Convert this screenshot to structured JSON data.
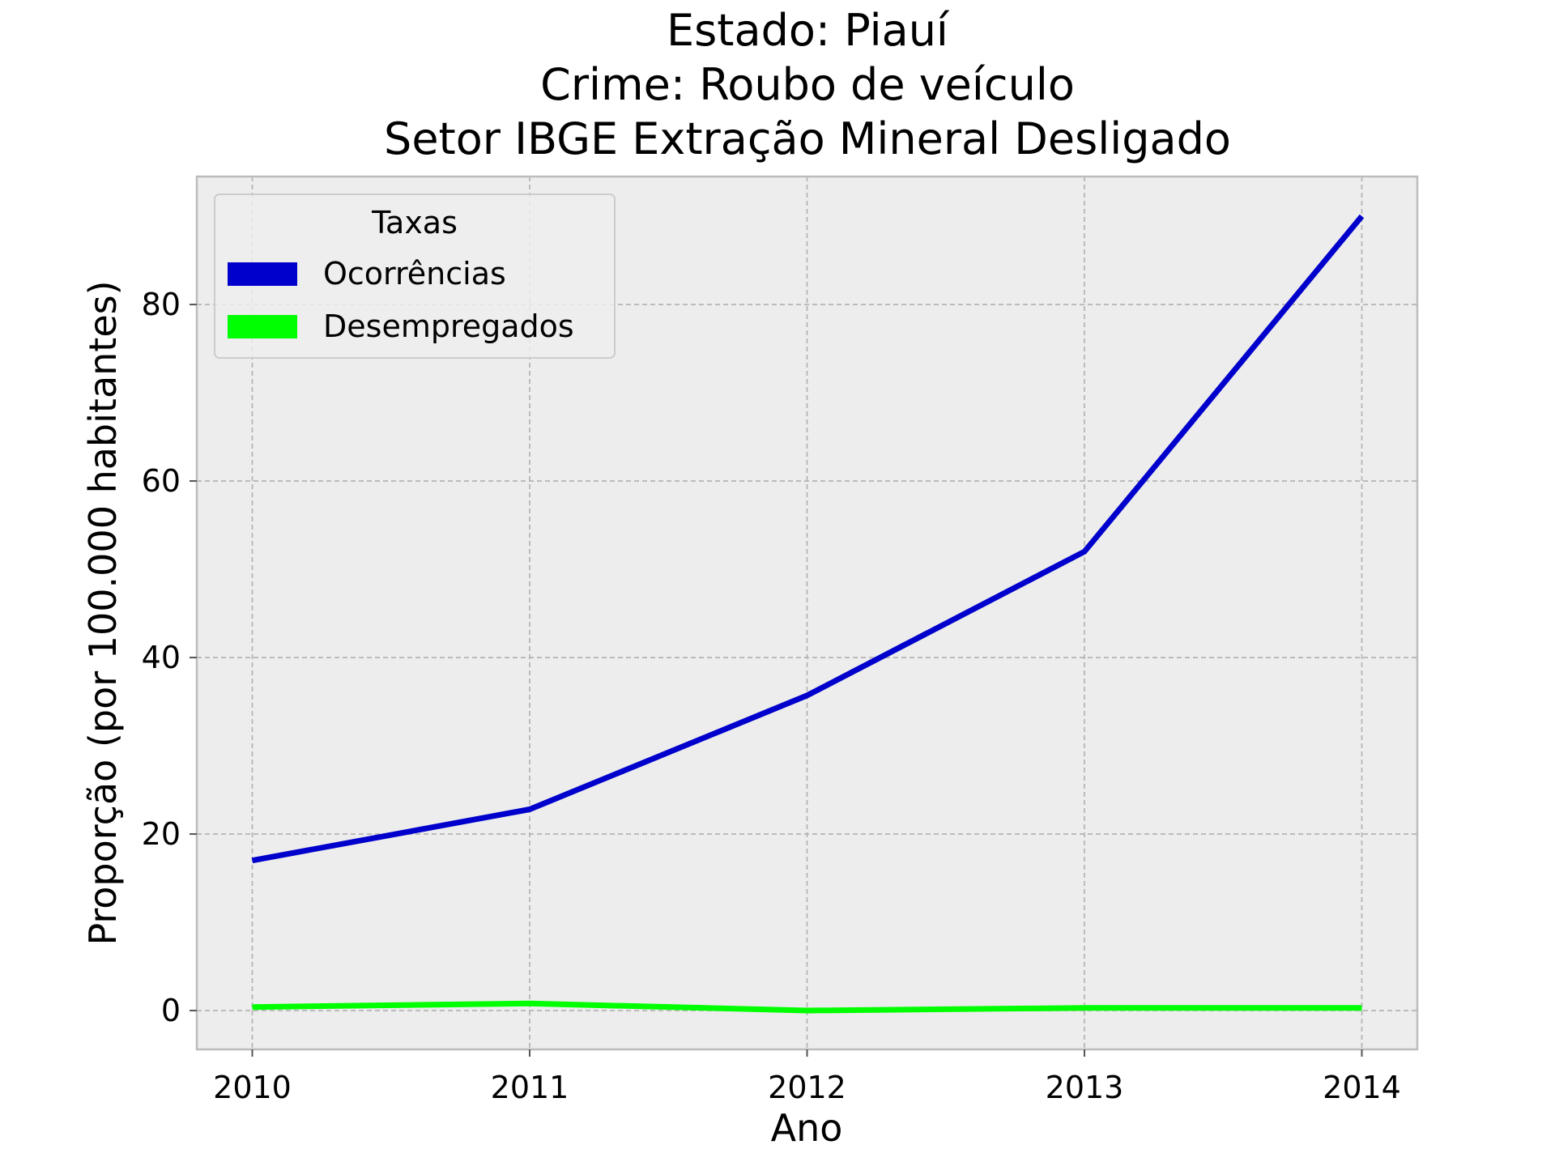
{
  "chart_data": {
    "type": "line",
    "title": [
      "Estado: Piauí",
      "Crime: Roubo de veículo",
      "Setor IBGE  Extração Mineral   Desligado"
    ],
    "xlabel": "Ano",
    "ylabel": "Proporção (por 100.000 habitantes)",
    "x": [
      2010,
      2011,
      2012,
      2013,
      2014
    ],
    "xticks": [
      "2010",
      "2011",
      "2012",
      "2013",
      "2014"
    ],
    "xlim": [
      2009.8,
      2014.2
    ],
    "yticks": [
      0,
      20,
      40,
      60,
      80
    ],
    "ylim": [
      -4.4,
      94.5
    ],
    "grid": true,
    "legend": {
      "title": "Taxas",
      "placement": "upper-left"
    },
    "series": [
      {
        "name": "Ocorrências",
        "color": "#0000cd",
        "values": [
          17.0,
          22.8,
          35.7,
          52.0,
          90.0
        ]
      },
      {
        "name": "Desempregados",
        "color": "#00ff00",
        "values": [
          0.4,
          0.8,
          0.0,
          0.3,
          0.3
        ]
      }
    ],
    "plot_background": "#ededed"
  }
}
